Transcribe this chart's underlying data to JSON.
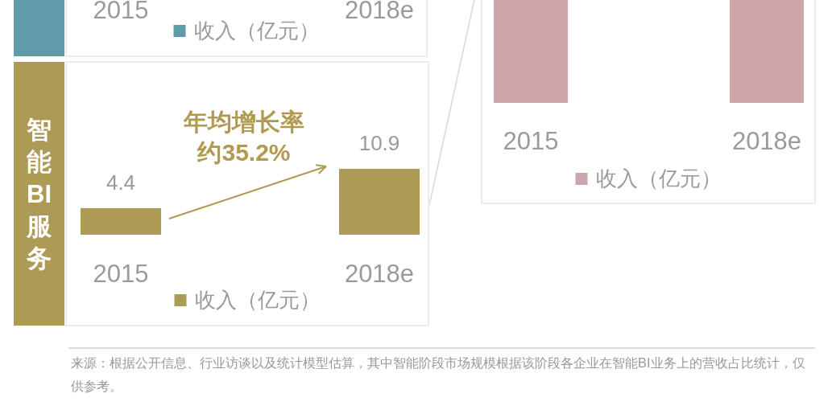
{
  "chart_data": [
    {
      "type": "other",
      "categories": [
        "2015",
        "2018e"
      ],
      "color": "#5f9cab",
      "annotations": [
        "收入（亿元）"
      ]
    },
    {
      "type": "bar",
      "title": "智能BI服务",
      "categories": [
        "2015",
        "2018e"
      ],
      "series": [
        {
          "name": "收入（亿元）",
          "color": "#ad9a55",
          "values": [
            4.4,
            10.9
          ]
        }
      ],
      "data_labels": true,
      "legend": "bottom",
      "annotations": [
        "年均增长率",
        "约35.2%"
      ]
    },
    {
      "type": "other",
      "categories": [
        "2015",
        "2018e"
      ],
      "color": "#cca6a9",
      "annotations": [
        "收入（亿元）"
      ]
    },
    {
      "type": "other",
      "annotations": [
        "来源：根据公开信息、行业访谈以及统计模型估算，其中智能阶段市场规模根据该阶段各企业在智能BI业务上的营收占比统计，仅供参考。"
      ]
    }
  ]
}
